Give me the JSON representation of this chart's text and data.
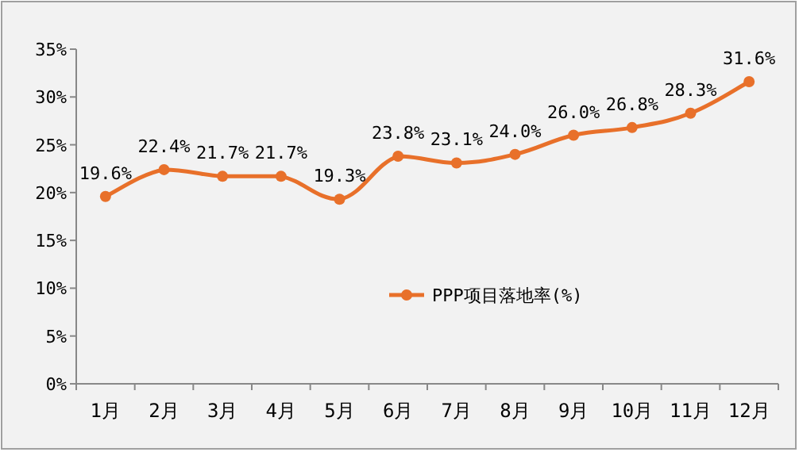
{
  "chart_data": {
    "type": "line",
    "categories": [
      "1月",
      "2月",
      "3月",
      "4月",
      "5月",
      "6月",
      "7月",
      "8月",
      "9月",
      "10月",
      "11月",
      "12月"
    ],
    "series": [
      {
        "name": "PPP项目落地率(%)",
        "color": "#e8702a",
        "values": [
          19.6,
          22.4,
          21.7,
          21.7,
          19.3,
          23.8,
          23.1,
          24.0,
          26.0,
          26.8,
          28.3,
          31.6
        ],
        "value_labels": [
          "19.6%",
          "22.4%",
          "21.7%",
          "21.7%",
          "19.3%",
          "23.8%",
          "23.1%",
          "24.0%",
          "26.0%",
          "26.8%",
          "28.3%",
          "31.6%"
        ]
      }
    ],
    "ylim": [
      0,
      35
    ],
    "yticks": [
      {
        "value": 0,
        "label": "0%"
      },
      {
        "value": 5,
        "label": "5%"
      },
      {
        "value": 10,
        "label": "10%"
      },
      {
        "value": 15,
        "label": "15%"
      },
      {
        "value": 20,
        "label": "20%"
      },
      {
        "value": 25,
        "label": "25%"
      },
      {
        "value": 30,
        "label": "30%"
      },
      {
        "value": 35,
        "label": "35%"
      }
    ],
    "legend": "center",
    "marker": "circle",
    "line_style": "solid",
    "grid": false
  }
}
